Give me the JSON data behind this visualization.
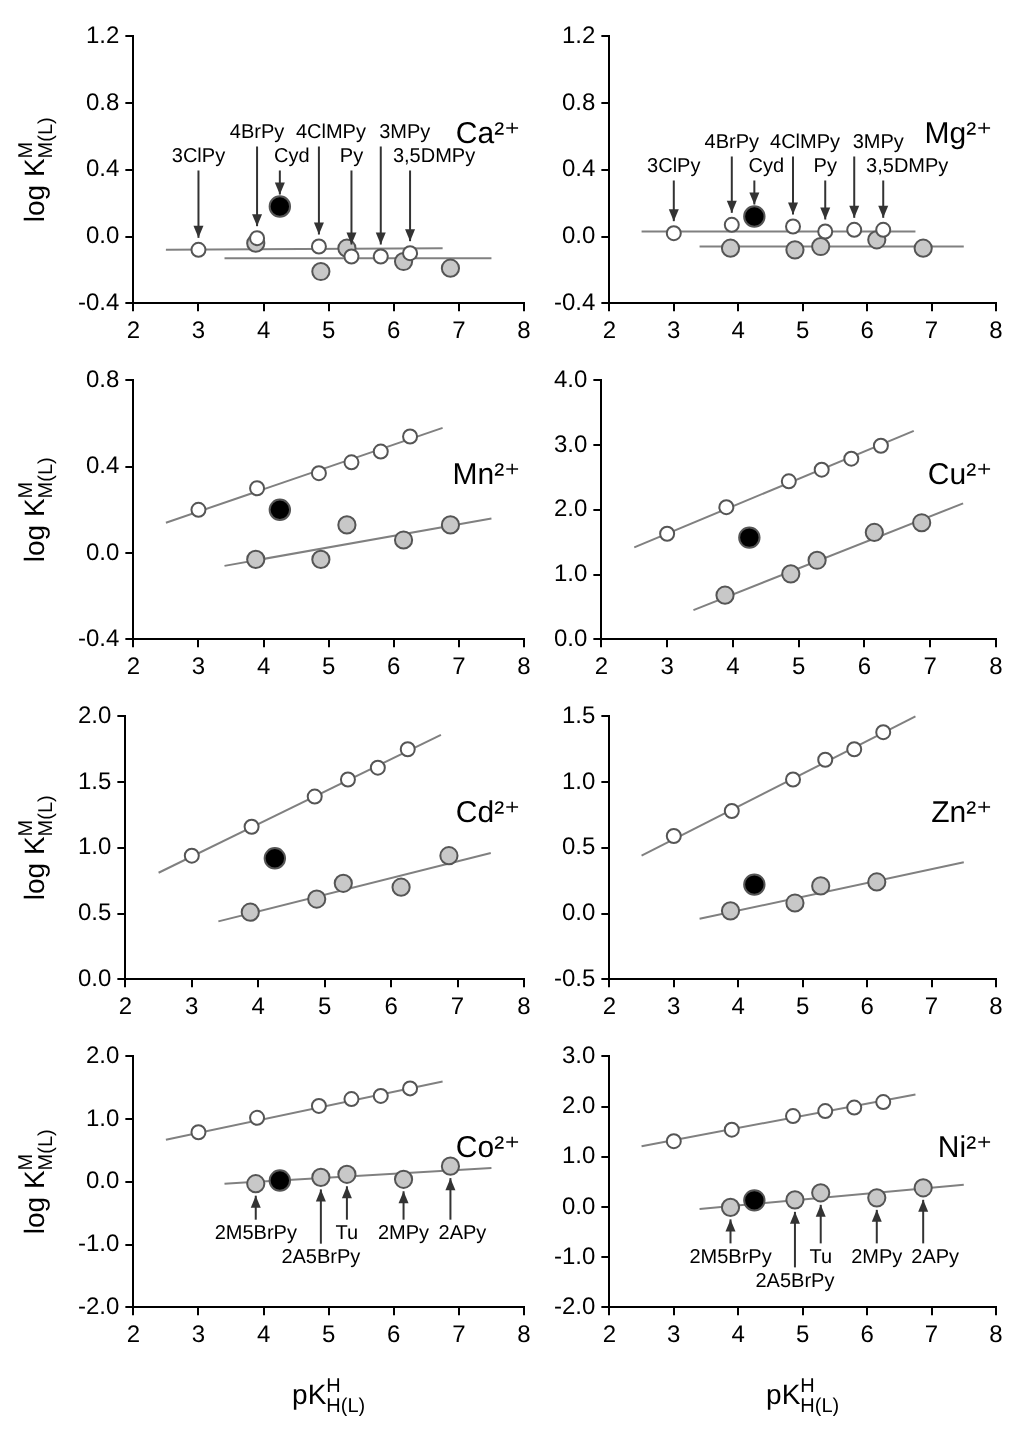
{
  "chart_data": [
    {
      "type": "scatter",
      "title": "Ca²⁺",
      "ylabel": "log K$^{M}$$_{M(L)}$",
      "xlim": [
        2,
        8
      ],
      "xticks": [
        2,
        3,
        4,
        5,
        6,
        7,
        8
      ],
      "ylim": [
        -0.4,
        1.2
      ],
      "yticks": [
        {
          "value": -0.4,
          "label": "-0.4"
        },
        {
          "value": 0,
          "label": "0.0"
        },
        {
          "value": 0.4,
          "label": "0.4"
        },
        {
          "value": 0.8,
          "label": "0.8"
        },
        {
          "value": 1.2,
          "label": "1.2"
        }
      ],
      "grid": false,
      "marker": "circle",
      "series": [
        {
          "color": "#ffffff",
          "x": [
            3,
            3.9,
            4.85,
            5.35,
            5.8,
            6.25
          ],
          "values": [
            -0.08,
            -0.01,
            -0.06,
            -0.12,
            -0.12,
            -0.1
          ]
        },
        {
          "color": "#c8c8c8",
          "x": [
            3.88,
            4.88,
            5.28,
            6.15,
            6.87
          ],
          "values": [
            -0.04,
            -0.21,
            -0.07,
            -0.15,
            -0.19
          ]
        },
        {
          "color": "#000000",
          "x": [
            4.25
          ],
          "values": [
            0.18
          ]
        },
        {
          "type": "line",
          "marker": "none",
          "color": "#808080",
          "x": [
            2.5,
            6.75
          ],
          "values": [
            -0.08,
            -0.07
          ]
        },
        {
          "type": "line",
          "marker": "none",
          "color": "#808080",
          "x": [
            3.4,
            7.5
          ],
          "values": [
            -0.13,
            -0.13
          ]
        }
      ],
      "annotations": [
        {
          "text": "3ClPy",
          "x": 3,
          "y": -0.08
        },
        {
          "text": "4BrPy",
          "x": 3.9,
          "y": -0.01
        },
        {
          "text": "Cyd",
          "x": 4.25,
          "y": 0.18
        },
        {
          "text": "4ClMPy",
          "x": 4.85,
          "y": -0.06
        },
        {
          "text": "Py",
          "x": 5.35,
          "y": -0.12
        },
        {
          "text": "3MPy",
          "x": 5.8,
          "y": -0.12
        },
        {
          "text": "3,5DMPy",
          "x": 6.25,
          "y": -0.1
        }
      ]
    },
    {
      "type": "scatter",
      "title": "Mg²⁺",
      "xlim": [
        2,
        8
      ],
      "xticks": [
        2,
        3,
        4,
        5,
        6,
        7,
        8
      ],
      "ylim": [
        -0.4,
        1.2
      ],
      "yticks": [
        {
          "value": -0.4,
          "label": "-0.4"
        },
        {
          "value": 0,
          "label": "0.0"
        },
        {
          "value": 0.4,
          "label": "0.4"
        },
        {
          "value": 0.8,
          "label": "0.8"
        },
        {
          "value": 1.2,
          "label": "1.2"
        }
      ],
      "grid": false,
      "marker": "circle",
      "series": [
        {
          "color": "#ffffff",
          "x": [
            3,
            3.9,
            4.85,
            5.35,
            5.8,
            6.25
          ],
          "values": [
            0.02,
            0.07,
            0.06,
            0.03,
            0.04,
            0.04
          ]
        },
        {
          "color": "#c8c8c8",
          "x": [
            3.88,
            4.88,
            5.28,
            6.15,
            6.87
          ],
          "values": [
            -0.07,
            -0.08,
            -0.06,
            -0.02,
            -0.07
          ]
        },
        {
          "color": "#000000",
          "x": [
            4.25
          ],
          "values": [
            0.12
          ]
        },
        {
          "type": "line",
          "marker": "none",
          "color": "#808080",
          "x": [
            2.5,
            6.75
          ],
          "values": [
            0.03,
            0.03
          ]
        },
        {
          "type": "line",
          "marker": "none",
          "color": "#808080",
          "x": [
            3.4,
            7.5
          ],
          "values": [
            -0.06,
            -0.06
          ]
        }
      ],
      "annotations": [
        {
          "text": "3ClPy",
          "x": 3,
          "y": 0.02
        },
        {
          "text": "4BrPy",
          "x": 3.9,
          "y": 0.07
        },
        {
          "text": "Cyd",
          "x": 4.25,
          "y": 0.12
        },
        {
          "text": "4ClMPy",
          "x": 4.85,
          "y": 0.06
        },
        {
          "text": "Py",
          "x": 5.35,
          "y": 0.03
        },
        {
          "text": "3MPy",
          "x": 5.8,
          "y": 0.04
        },
        {
          "text": "3,5DMPy",
          "x": 6.25,
          "y": 0.04
        }
      ]
    },
    {
      "type": "scatter",
      "title": "Mn²⁺",
      "ylabel": "log K$^{M}$$_{M(L)}$",
      "xlim": [
        2,
        8
      ],
      "xticks": [
        2,
        3,
        4,
        5,
        6,
        7,
        8
      ],
      "ylim": [
        -0.4,
        0.8
      ],
      "yticks": [
        {
          "value": -0.4,
          "label": "-0.4"
        },
        {
          "value": 0,
          "label": "0.0"
        },
        {
          "value": 0.4,
          "label": "0.4"
        },
        {
          "value": 0.8,
          "label": "0.8"
        }
      ],
      "grid": false,
      "marker": "circle",
      "series": [
        {
          "color": "#ffffff",
          "x": [
            3,
            3.9,
            4.85,
            5.35,
            5.8,
            6.25
          ],
          "values": [
            0.2,
            0.3,
            0.37,
            0.42,
            0.47,
            0.54
          ]
        },
        {
          "color": "#c8c8c8",
          "x": [
            3.88,
            4.88,
            5.28,
            6.15,
            6.87
          ],
          "values": [
            -0.03,
            -0.03,
            0.13,
            0.06,
            0.13
          ]
        },
        {
          "color": "#000000",
          "x": [
            4.25
          ],
          "values": [
            0.2
          ]
        },
        {
          "type": "line",
          "marker": "none",
          "color": "#808080",
          "x": [
            2.5,
            6.75
          ],
          "values": [
            0.14,
            0.58
          ]
        },
        {
          "type": "line",
          "marker": "none",
          "color": "#808080",
          "x": [
            3.4,
            7.5
          ],
          "values": [
            -0.06,
            0.16
          ]
        }
      ]
    },
    {
      "type": "scatter",
      "title": "Cu²⁺",
      "xlim": [
        2,
        8
      ],
      "xticks": [
        2,
        3,
        4,
        5,
        6,
        7,
        8
      ],
      "ylim": [
        0,
        4
      ],
      "yticks": [
        {
          "value": 0,
          "label": "0.0"
        },
        {
          "value": 1,
          "label": "1.0"
        },
        {
          "value": 2,
          "label": "2.0"
        },
        {
          "value": 3,
          "label": "3.0"
        },
        {
          "value": 4,
          "label": "4.0"
        }
      ],
      "grid": false,
      "marker": "circle",
      "series": [
        {
          "color": "#ffffff",
          "x": [
            3,
            3.9,
            4.85,
            5.35,
            5.8,
            6.25
          ],
          "values": [
            1.63,
            2.04,
            2.44,
            2.62,
            2.79,
            2.99
          ]
        },
        {
          "color": "#c8c8c8",
          "x": [
            3.88,
            4.88,
            5.28,
            6.15,
            6.87
          ],
          "values": [
            0.68,
            1.01,
            1.22,
            1.65,
            1.8
          ]
        },
        {
          "color": "#000000",
          "x": [
            4.25
          ],
          "values": [
            1.57
          ]
        },
        {
          "type": "line",
          "marker": "none",
          "color": "#808080",
          "x": [
            2.5,
            6.75
          ],
          "values": [
            1.42,
            3.22
          ]
        },
        {
          "type": "line",
          "marker": "none",
          "color": "#808080",
          "x": [
            3.4,
            7.5
          ],
          "values": [
            0.45,
            2.1
          ]
        }
      ]
    },
    {
      "type": "scatter",
      "title": "Cd²⁺",
      "ylabel": "log K$^{M}$$_{M(L)}$",
      "xlim": [
        2,
        8
      ],
      "xticks": [
        2,
        3,
        4,
        5,
        6,
        7,
        8
      ],
      "ylim": [
        0,
        2
      ],
      "yticks": [
        {
          "value": 0,
          "label": "0.0"
        },
        {
          "value": 0.5,
          "label": "0.5"
        },
        {
          "value": 1,
          "label": "1.0"
        },
        {
          "value": 1.5,
          "label": "1.5"
        },
        {
          "value": 2,
          "label": "2.0"
        }
      ],
      "grid": false,
      "marker": "circle",
      "series": [
        {
          "color": "#ffffff",
          "x": [
            3,
            3.9,
            4.85,
            5.35,
            5.8,
            6.25
          ],
          "values": [
            0.94,
            1.16,
            1.39,
            1.52,
            1.61,
            1.75
          ]
        },
        {
          "color": "#c8c8c8",
          "x": [
            3.88,
            4.88,
            5.28,
            6.15,
            6.87
          ],
          "values": [
            0.51,
            0.61,
            0.73,
            0.7,
            0.94
          ]
        },
        {
          "color": "#000000",
          "x": [
            4.25
          ],
          "values": [
            0.92
          ]
        },
        {
          "type": "line",
          "marker": "none",
          "color": "#808080",
          "x": [
            2.5,
            6.75
          ],
          "values": [
            0.81,
            1.86
          ]
        },
        {
          "type": "line",
          "marker": "none",
          "color": "#808080",
          "x": [
            3.4,
            7.5
          ],
          "values": [
            0.44,
            0.96
          ]
        }
      ]
    },
    {
      "type": "scatter",
      "title": "Zn²⁺",
      "xlim": [
        2,
        8
      ],
      "xticks": [
        2,
        3,
        4,
        5,
        6,
        7,
        8
      ],
      "ylim": [
        -0.5,
        1.5
      ],
      "yticks": [
        {
          "value": -0.5,
          "label": "-0.5"
        },
        {
          "value": 0,
          "label": "0.0"
        },
        {
          "value": 0.5,
          "label": "0.5"
        },
        {
          "value": 1,
          "label": "1.0"
        },
        {
          "value": 1.5,
          "label": "1.5"
        }
      ],
      "grid": false,
      "marker": "circle",
      "series": [
        {
          "color": "#ffffff",
          "x": [
            3,
            3.9,
            4.85,
            5.35,
            5.8,
            6.25
          ],
          "values": [
            0.59,
            0.78,
            1.02,
            1.17,
            1.25,
            1.38
          ]
        },
        {
          "color": "#c8c8c8",
          "x": [
            3.88,
            4.88,
            5.28,
            6.15
          ],
          "values": [
            0.02,
            0.08,
            0.21,
            0.24
          ]
        },
        {
          "color": "#000000",
          "x": [
            4.25
          ],
          "values": [
            0.22
          ]
        },
        {
          "type": "line",
          "marker": "none",
          "color": "#808080",
          "x": [
            2.5,
            6.75
          ],
          "values": [
            0.44,
            1.5
          ]
        },
        {
          "type": "line",
          "marker": "none",
          "color": "#808080",
          "x": [
            3.4,
            7.5
          ],
          "values": [
            -0.04,
            0.39
          ]
        }
      ]
    },
    {
      "type": "scatter",
      "title": "Co²⁺",
      "ylabel": "log K$^{M}$$_{M(L)}$",
      "xlabel": "pK$^{H}$$_{H(L)}$",
      "xlim": [
        2,
        8
      ],
      "xticks": [
        2,
        3,
        4,
        5,
        6,
        7,
        8
      ],
      "ylim": [
        -2,
        2
      ],
      "yticks": [
        {
          "value": -2,
          "label": "-2.0"
        },
        {
          "value": -1,
          "label": "-1.0"
        },
        {
          "value": 0,
          "label": "0.0"
        },
        {
          "value": 1,
          "label": "1.0"
        },
        {
          "value": 2,
          "label": "2.0"
        }
      ],
      "grid": false,
      "marker": "circle",
      "series": [
        {
          "color": "#ffffff",
          "x": [
            3,
            3.9,
            4.85,
            5.35,
            5.8,
            6.25
          ],
          "values": [
            0.79,
            1.02,
            1.21,
            1.32,
            1.37,
            1.49
          ]
        },
        {
          "color": "#c8c8c8",
          "x": [
            3.88,
            4.88,
            5.28,
            6.15,
            6.87
          ],
          "values": [
            -0.03,
            0.07,
            0.12,
            0.04,
            0.25
          ]
        },
        {
          "color": "#000000",
          "x": [
            4.25
          ],
          "values": [
            0.02
          ]
        },
        {
          "type": "line",
          "marker": "none",
          "color": "#808080",
          "x": [
            2.5,
            6.75
          ],
          "values": [
            0.67,
            1.6
          ]
        },
        {
          "type": "line",
          "marker": "none",
          "color": "#808080",
          "x": [
            3.4,
            7.5
          ],
          "values": [
            -0.03,
            0.22
          ]
        }
      ],
      "annotations": [
        {
          "text": "2M5BrPy",
          "x": 3.88,
          "y": -0.03
        },
        {
          "text": "2A5BrPy",
          "x": 4.88,
          "y": 0.07
        },
        {
          "text": "Tu",
          "x": 5.28,
          "y": 0.12
        },
        {
          "text": "2MPy",
          "x": 6.15,
          "y": 0.04
        },
        {
          "text": "2APy",
          "x": 6.87,
          "y": 0.25
        }
      ]
    },
    {
      "type": "scatter",
      "title": "Ni²⁺",
      "xlabel": "pK$^{H}$$_{H(L)}$",
      "xlim": [
        2,
        8
      ],
      "xticks": [
        2,
        3,
        4,
        5,
        6,
        7,
        8
      ],
      "ylim": [
        -2,
        3
      ],
      "yticks": [
        {
          "value": -2,
          "label": "-2.0"
        },
        {
          "value": -1,
          "label": "-1.0"
        },
        {
          "value": 0,
          "label": "0.0"
        },
        {
          "value": 1,
          "label": "1.0"
        },
        {
          "value": 2,
          "label": "2.0"
        },
        {
          "value": 3,
          "label": "3.0"
        }
      ],
      "grid": false,
      "marker": "circle",
      "series": [
        {
          "color": "#ffffff",
          "x": [
            3,
            3.9,
            4.85,
            5.35,
            5.8,
            6.25
          ],
          "values": [
            1.31,
            1.54,
            1.81,
            1.91,
            1.98,
            2.09
          ]
        },
        {
          "color": "#c8c8c8",
          "x": [
            3.88,
            4.88,
            5.28,
            6.15,
            6.87
          ],
          "values": [
            -0.01,
            0.14,
            0.28,
            0.18,
            0.38
          ]
        },
        {
          "color": "#000000",
          "x": [
            4.25
          ],
          "values": [
            0.13
          ]
        },
        {
          "type": "line",
          "marker": "none",
          "color": "#808080",
          "x": [
            2.5,
            6.75
          ],
          "values": [
            1.21,
            2.24
          ]
        },
        {
          "type": "line",
          "marker": "none",
          "color": "#808080",
          "x": [
            3.4,
            7.5
          ],
          "values": [
            -0.04,
            0.44
          ]
        }
      ],
      "annotations": [
        {
          "text": "2M5BrPy",
          "x": 3.88,
          "y": -0.01
        },
        {
          "text": "2A5BrPy",
          "x": 4.88,
          "y": 0.14
        },
        {
          "text": "Tu",
          "x": 5.28,
          "y": 0.28
        },
        {
          "text": "2MPy",
          "x": 6.15,
          "y": 0.18
        },
        {
          "text": "2APy",
          "x": 6.87,
          "y": 0.38
        }
      ]
    }
  ]
}
